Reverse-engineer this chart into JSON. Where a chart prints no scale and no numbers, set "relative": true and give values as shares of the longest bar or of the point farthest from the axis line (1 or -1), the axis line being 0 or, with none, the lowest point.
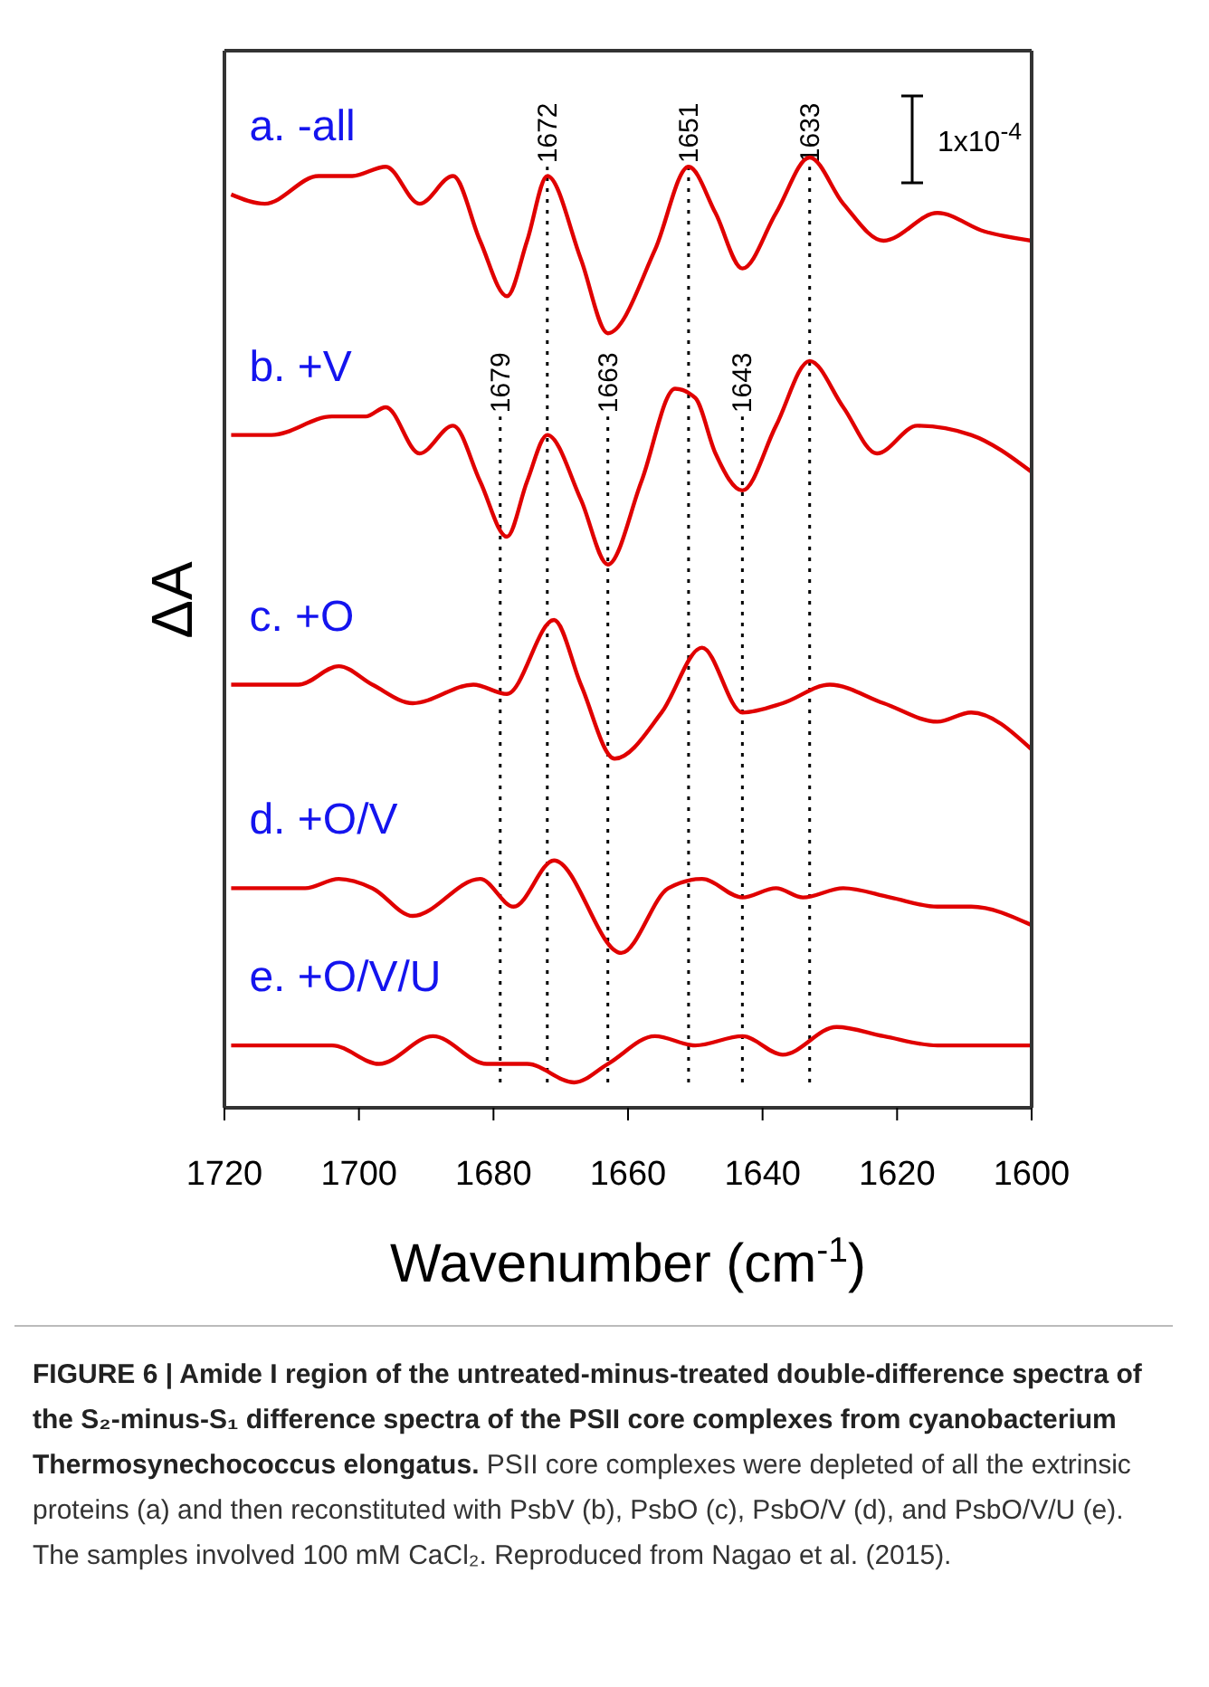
{
  "chart_data": {
    "type": "line",
    "relative": true,
    "xlabel": "Wavenumber (cm$^{-1}$)",
    "ylabel": "ΔA",
    "xlim": [
      1720,
      1600
    ],
    "xticks": [
      1720,
      1700,
      1680,
      1660,
      1640,
      1620,
      1600
    ],
    "line_style": "solid",
    "series": [
      {
        "name": "a. -all",
        "color": "#e00000",
        "x": [
          1719,
          1714,
          1706,
          1701,
          1696,
          1691,
          1686,
          1682,
          1678,
          1675,
          1672,
          1667,
          1663,
          1656,
          1651,
          1647,
          1643,
          1638,
          1633,
          1628,
          1622,
          1614,
          1607,
          1600
        ],
        "values": [
          0.96,
          0.95,
          0.98,
          0.98,
          0.99,
          0.95,
          0.98,
          0.91,
          0.85,
          0.91,
          0.98,
          0.89,
          0.81,
          0.9,
          0.99,
          0.94,
          0.88,
          0.94,
          1.0,
          0.95,
          0.91,
          0.94,
          0.92,
          0.91
        ]
      },
      {
        "name": "b. +V",
        "color": "#e00000",
        "x": [
          1719,
          1713,
          1704,
          1699,
          1696,
          1691,
          1686,
          1682,
          1678,
          1675,
          1672,
          1667,
          1663,
          1658,
          1653,
          1650,
          1647,
          1643,
          1638,
          1633,
          1628,
          1623,
          1617,
          1609,
          1600
        ],
        "values": [
          0.7,
          0.7,
          0.72,
          0.72,
          0.73,
          0.68,
          0.71,
          0.65,
          0.59,
          0.65,
          0.7,
          0.63,
          0.56,
          0.65,
          0.75,
          0.74,
          0.68,
          0.64,
          0.71,
          0.78,
          0.73,
          0.68,
          0.71,
          0.7,
          0.66
        ]
      },
      {
        "name": "c. +O",
        "color": "#e00000",
        "x": [
          1719,
          1709,
          1703,
          1698,
          1692,
          1683,
          1678,
          1671,
          1667,
          1662,
          1655,
          1649,
          1643,
          1637,
          1630,
          1622,
          1614,
          1609,
          1600
        ],
        "values": [
          0.43,
          0.43,
          0.45,
          0.43,
          0.41,
          0.43,
          0.42,
          0.5,
          0.43,
          0.35,
          0.4,
          0.47,
          0.4,
          0.41,
          0.43,
          0.41,
          0.39,
          0.4,
          0.36
        ]
      },
      {
        "name": "d. +O/V",
        "color": "#e00000",
        "x": [
          1719,
          1708,
          1703,
          1698,
          1692,
          1682,
          1677,
          1671,
          1661,
          1654,
          1649,
          1643,
          1638,
          1634,
          1628,
          1621,
          1614,
          1609,
          1600
        ],
        "values": [
          0.21,
          0.21,
          0.22,
          0.21,
          0.18,
          0.22,
          0.19,
          0.24,
          0.14,
          0.21,
          0.22,
          0.2,
          0.21,
          0.2,
          0.21,
          0.2,
          0.19,
          0.19,
          0.17
        ]
      },
      {
        "name": "e. +O/V/U",
        "color": "#e00000",
        "x": [
          1719,
          1704,
          1697,
          1689,
          1681,
          1675,
          1668,
          1663,
          1656,
          1650,
          1643,
          1637,
          1629,
          1622,
          1614,
          1607,
          1600
        ],
        "values": [
          0.04,
          0.04,
          0.02,
          0.05,
          0.02,
          0.02,
          0.0,
          0.02,
          0.05,
          0.04,
          0.05,
          0.03,
          0.06,
          0.05,
          0.04,
          0.04,
          0.04
        ]
      }
    ],
    "ref_lines": [
      {
        "axis": "x",
        "value": 1679,
        "label": "1679",
        "color": "#000000",
        "line_style": "dotted"
      },
      {
        "axis": "x",
        "value": 1672,
        "label": "1672",
        "color": "#000000",
        "line_style": "dotted"
      },
      {
        "axis": "x",
        "value": 1663,
        "label": "1663",
        "color": "#000000",
        "line_style": "dotted"
      },
      {
        "axis": "x",
        "value": 1651,
        "label": "1651",
        "color": "#000000",
        "line_style": "dotted"
      },
      {
        "axis": "x",
        "value": 1643,
        "label": "1643",
        "color": "#000000",
        "line_style": "dotted"
      },
      {
        "axis": "x",
        "value": 1633,
        "label": "1633",
        "color": "#000000",
        "line_style": "dotted"
      }
    ],
    "annotations": [
      "1x10$^{-4}$",
      "FIGURE 6 | Amide I region of the untreated-minus-treated double-difference spectra of the S₂-minus-S₁ difference spectra of the PSII core complexes from cyanobacterium Thermosynechococcus elongatus.",
      "PSII core complexes were depleted of all the extrinsic proteins (a) and then reconstituted with PsbV (b), PsbO (c), PsbO/V (d), and PsbO/V/U (e). The samples involved 100 mM CaCl₂. Reproduced from Nagao et al. (2015)."
    ]
  }
}
